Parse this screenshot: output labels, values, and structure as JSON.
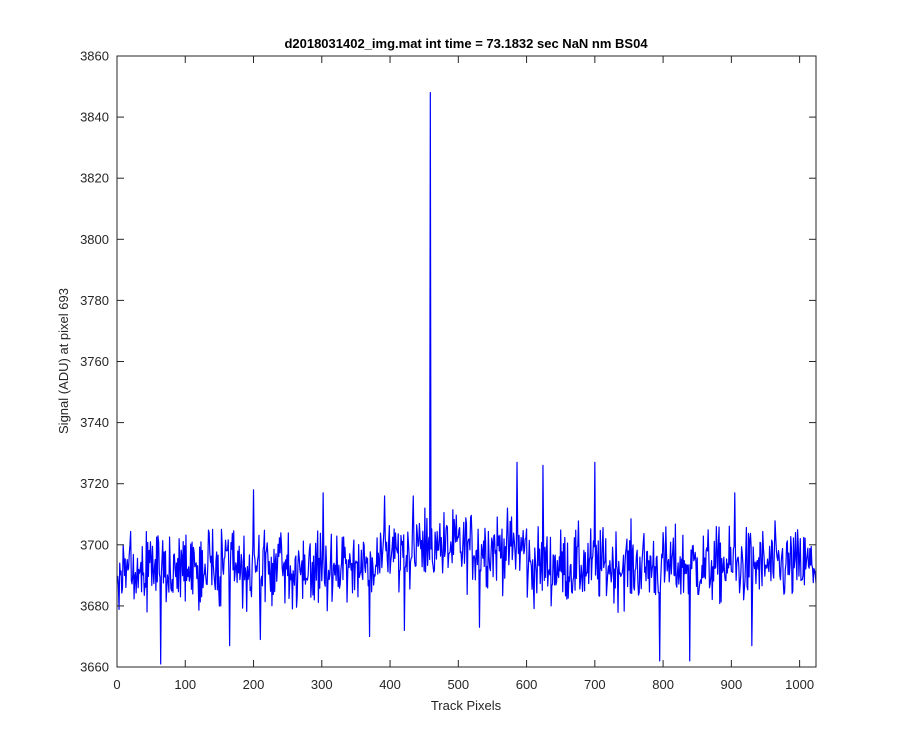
{
  "chart_data": {
    "type": "line",
    "title": "d2018031402_img.mat int time = 73.1832 sec  NaN nm BS04",
    "xlabel": "Track Pixels",
    "ylabel": "Signal (ADU) at pixel 693",
    "xlim": [
      0,
      1024
    ],
    "ylim": [
      3660,
      3860
    ],
    "xticks": [
      0,
      100,
      200,
      300,
      400,
      500,
      600,
      700,
      800,
      900,
      1000
    ],
    "yticks": [
      3660,
      3680,
      3700,
      3720,
      3740,
      3760,
      3780,
      3800,
      3820,
      3840,
      3860
    ],
    "grid": false,
    "legend": "none",
    "line_color": "#0000ff",
    "series": [
      {
        "x_start": 1,
        "x_end": 1024,
        "baseline": 3692,
        "baseline_segments": [
          {
            "x": [
              1,
              380
            ],
            "level": 3692
          },
          {
            "x": [
              380,
              600
            ],
            "level": 3699
          },
          {
            "x": [
              600,
              1024
            ],
            "level": 3693
          }
        ],
        "noise_amplitude": 8,
        "peaks": [
          {
            "x": 459,
            "y": 3848
          },
          {
            "x": 200,
            "y": 3718
          },
          {
            "x": 302,
            "y": 3717
          },
          {
            "x": 392,
            "y": 3716
          },
          {
            "x": 434,
            "y": 3716
          },
          {
            "x": 586,
            "y": 3727
          },
          {
            "x": 624,
            "y": 3726
          },
          {
            "x": 700,
            "y": 3727
          },
          {
            "x": 905,
            "y": 3717
          }
        ],
        "troughs": [
          {
            "x": 64,
            "y": 3661
          },
          {
            "x": 165,
            "y": 3667
          },
          {
            "x": 210,
            "y": 3669
          },
          {
            "x": 370,
            "y": 3670
          },
          {
            "x": 421,
            "y": 3672
          },
          {
            "x": 531,
            "y": 3673
          },
          {
            "x": 795,
            "y": 3662
          },
          {
            "x": 839,
            "y": 3662
          },
          {
            "x": 930,
            "y": 3667
          }
        ]
      }
    ]
  }
}
